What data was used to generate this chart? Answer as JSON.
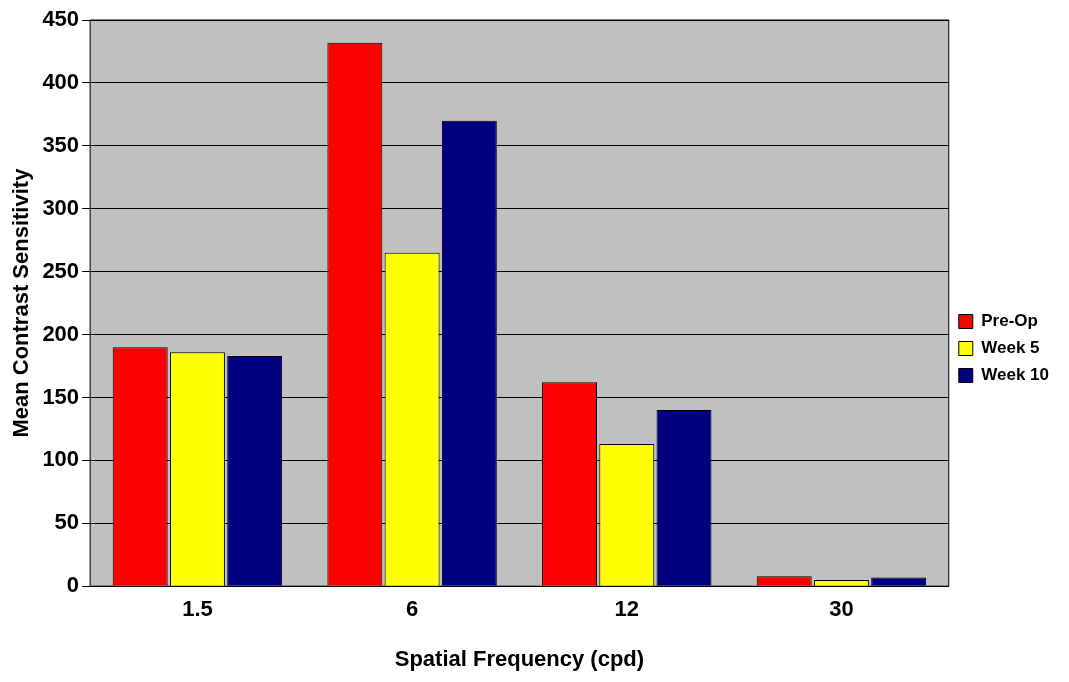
{
  "chart_data": {
    "type": "bar",
    "xlabel": "Spatial Frequency (cpd)",
    "ylabel": "Mean Contrast Sensitivity",
    "categories": [
      "1.5",
      "6",
      "12",
      "30"
    ],
    "series": [
      {
        "name": "Pre-Op",
        "color": "#ff0000",
        "values": [
          190,
          432,
          162,
          8
        ]
      },
      {
        "name": "Week 5",
        "color": "#ffff00",
        "values": [
          186,
          265,
          113,
          5
        ]
      },
      {
        "name": "Week 10",
        "color": "#000080",
        "values": [
          183,
          370,
          140,
          7
        ]
      }
    ],
    "ylim": [
      0,
      450
    ],
    "yticks": [
      0,
      50,
      100,
      150,
      200,
      250,
      300,
      350,
      400,
      450
    ],
    "grid": "y",
    "legend": "right"
  }
}
